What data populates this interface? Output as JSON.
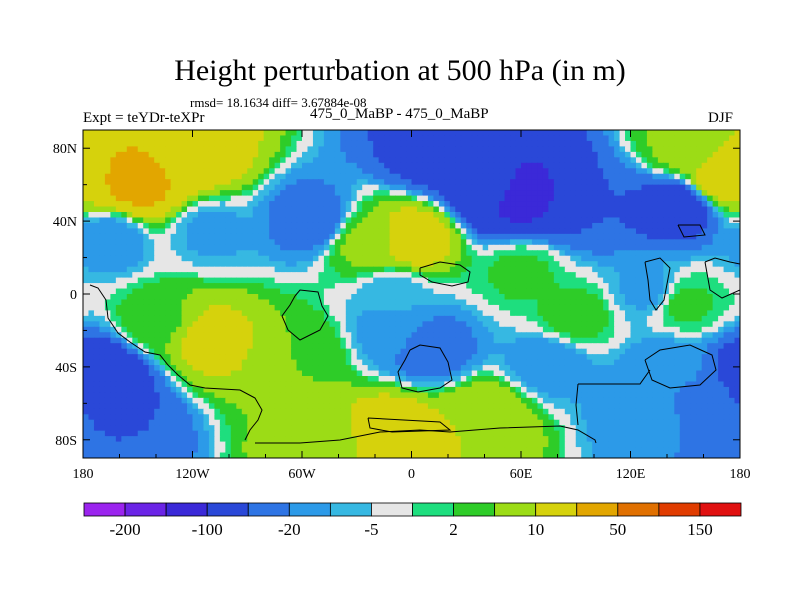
{
  "chart_data": {
    "type": "heatmap",
    "title": "Height perturbation at 500 hPa (in m)",
    "stats_line": "rmsd= 18.1634 diff= 3.67884e-08",
    "left_label": "Expt = teYDr-teXPr",
    "center_label": "475_0_MaBP - 475_0_MaBP",
    "right_label": "DJF",
    "x_ticks": [
      {
        "value": -180,
        "label": "180"
      },
      {
        "value": -120,
        "label": "120W"
      },
      {
        "value": -60,
        "label": "60W"
      },
      {
        "value": 0,
        "label": "0"
      },
      {
        "value": 60,
        "label": "60E"
      },
      {
        "value": 120,
        "label": "120E"
      },
      {
        "value": 180,
        "label": "180"
      }
    ],
    "y_ticks": [
      {
        "value": 80,
        "label": "80N"
      },
      {
        "value": 40,
        "label": "40N"
      },
      {
        "value": 0,
        "label": "0"
      },
      {
        "value": -40,
        "label": "40S"
      },
      {
        "value": -80,
        "label": "80S"
      }
    ],
    "xlim": [
      -180,
      180
    ],
    "ylim": [
      -90,
      90
    ],
    "colorbar": {
      "levels": [
        -200,
        -150,
        -100,
        -50,
        -20,
        -10,
        -5,
        -2,
        2,
        5,
        10,
        20,
        50,
        100,
        150,
        200
      ],
      "labels": [
        {
          "level": -200,
          "label": "-200"
        },
        {
          "level": -100,
          "label": "-100"
        },
        {
          "level": -20,
          "label": "-20"
        },
        {
          "level": -5,
          "label": "-5"
        },
        {
          "level": 2,
          "label": "2"
        },
        {
          "level": 10,
          "label": "10"
        },
        {
          "level": 50,
          "label": "50"
        },
        {
          "level": 150,
          "label": "150"
        }
      ],
      "colors": [
        "#9b24ee",
        "#6b24e6",
        "#3b29d8",
        "#2a48d8",
        "#2e74e4",
        "#2c9ae8",
        "#36b8e2",
        "#e6e6e6",
        "#1ede7e",
        "#2ecc28",
        "#9cdc16",
        "#d6d20c",
        "#e2a600",
        "#e07000",
        "#e03c00",
        "#e01010"
      ]
    },
    "approximate_field": [
      {
        "lon": -150,
        "lat": 62,
        "value": 60
      },
      {
        "lon": -120,
        "lat": 75,
        "value": 30
      },
      {
        "lon": -55,
        "lat": 40,
        "value": -15
      },
      {
        "lon": 10,
        "lat": 78,
        "value": -25
      },
      {
        "lon": 45,
        "lat": 60,
        "value": -40
      },
      {
        "lon": 60,
        "lat": 55,
        "value": -60
      },
      {
        "lon": 100,
        "lat": 50,
        "value": -20
      },
      {
        "lon": 145,
        "lat": 48,
        "value": -30
      },
      {
        "lon": 170,
        "lat": 65,
        "value": 30
      },
      {
        "lon": 150,
        "lat": 80,
        "value": 12
      },
      {
        "lon": 0,
        "lat": 30,
        "value": 30
      },
      {
        "lon": -25,
        "lat": 28,
        "value": 12
      },
      {
        "lon": -165,
        "lat": 30,
        "value": -8
      },
      {
        "lon": -110,
        "lat": 35,
        "value": -6
      },
      {
        "lon": 60,
        "lat": 12,
        "value": 6
      },
      {
        "lon": 130,
        "lat": 2,
        "value": -6
      },
      {
        "lon": -10,
        "lat": 0,
        "value": -4
      },
      {
        "lon": 90,
        "lat": -12,
        "value": 7
      },
      {
        "lon": 150,
        "lat": -5,
        "value": 6
      },
      {
        "lon": -110,
        "lat": -25,
        "value": 25
      },
      {
        "lon": -140,
        "lat": -15,
        "value": 8
      },
      {
        "lon": -60,
        "lat": -32,
        "value": 10
      },
      {
        "lon": 10,
        "lat": -30,
        "value": -15
      },
      {
        "lon": -10,
        "lat": -20,
        "value": -8
      },
      {
        "lon": 75,
        "lat": -38,
        "value": -8
      },
      {
        "lon": 140,
        "lat": -40,
        "value": -7
      },
      {
        "lon": -170,
        "lat": -45,
        "value": -40
      },
      {
        "lon": -160,
        "lat": -70,
        "value": -20
      },
      {
        "lon": -10,
        "lat": -75,
        "value": 30
      },
      {
        "lon": -50,
        "lat": -80,
        "value": 15
      },
      {
        "lon": 40,
        "lat": -68,
        "value": 20
      },
      {
        "lon": 130,
        "lat": -65,
        "value": -8
      },
      {
        "lon": 160,
        "lat": -60,
        "value": -12
      }
    ]
  }
}
